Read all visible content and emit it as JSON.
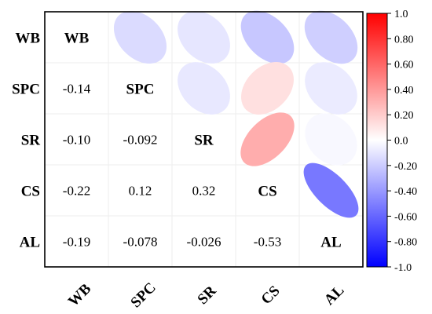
{
  "chart_data": {
    "type": "heatmap",
    "variables": [
      "WB",
      "SPC",
      "SR",
      "CS",
      "AL"
    ],
    "lower_triangle_display": "numbers",
    "upper_triangle_display": "ellipses",
    "correlations": [
      {
        "row": "SPC",
        "col": "WB",
        "value": -0.14,
        "label": "-0.14"
      },
      {
        "row": "SR",
        "col": "WB",
        "value": -0.1,
        "label": "-0.10"
      },
      {
        "row": "SR",
        "col": "SPC",
        "value": -0.092,
        "label": "-0.092"
      },
      {
        "row": "CS",
        "col": "WB",
        "value": -0.22,
        "label": "-0.22"
      },
      {
        "row": "CS",
        "col": "SPC",
        "value": 0.12,
        "label": "0.12"
      },
      {
        "row": "CS",
        "col": "SR",
        "value": 0.32,
        "label": "0.32"
      },
      {
        "row": "AL",
        "col": "WB",
        "value": -0.19,
        "label": "-0.19"
      },
      {
        "row": "AL",
        "col": "SPC",
        "value": -0.078,
        "label": "-0.078"
      },
      {
        "row": "AL",
        "col": "SR",
        "value": -0.026,
        "label": "-0.026"
      },
      {
        "row": "AL",
        "col": "CS",
        "value": -0.53,
        "label": "-0.53"
      }
    ],
    "colorbar": {
      "range": [
        -1.0,
        1.0
      ],
      "ticks": [
        "1.0",
        "0.80",
        "0.60",
        "0.40",
        "0.20",
        "0.0",
        "-0.20",
        "-0.40",
        "-0.60",
        "-0.80",
        "-1.0"
      ],
      "colors": {
        "negative": "#0000ff",
        "zero": "#ffffff",
        "positive": "#ff0000"
      }
    },
    "title": "",
    "xlabel": "",
    "ylabel": "",
    "grid": true
  }
}
